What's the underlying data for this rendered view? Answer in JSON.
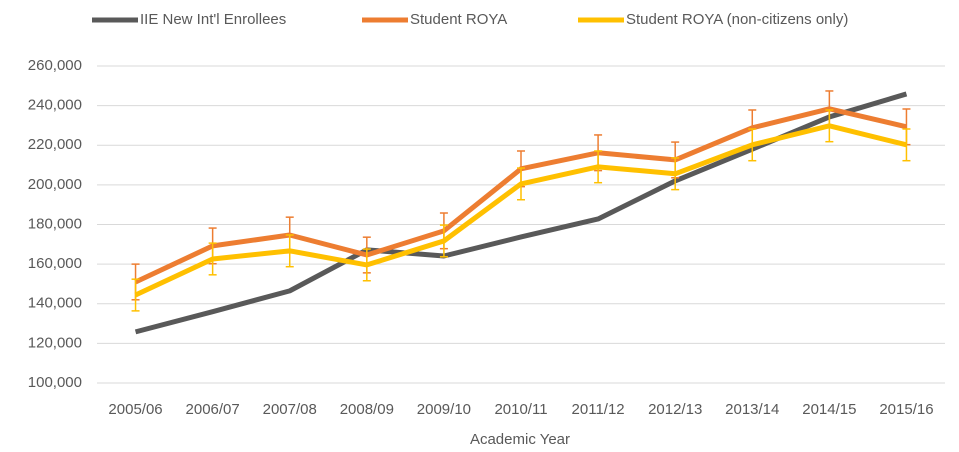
{
  "chart_data": {
    "type": "line",
    "x_label": "Academic Year",
    "categories": [
      "2005/06",
      "2006/07",
      "2007/08",
      "2008/09",
      "2009/10",
      "2010/11",
      "2011/12",
      "2012/13",
      "2013/14",
      "2014/15",
      "2015/16"
    ],
    "series": [
      {
        "name": "IIE New Int'l Enrollees",
        "color": "#595959",
        "values": [
          125800,
          136000,
          146500,
          167200,
          164100,
          173700,
          182800,
          202000,
          218000,
          234300,
          245900
        ]
      },
      {
        "name": "Student ROYA",
        "color": "#ed7d31",
        "values": [
          151000,
          169200,
          174700,
          164600,
          176800,
          208100,
          216200,
          212600,
          228800,
          238400,
          229300
        ],
        "errors": [
          9000,
          9000,
          9000,
          9000,
          9000,
          9000,
          9000,
          9000,
          9000,
          9000,
          9000
        ]
      },
      {
        "name": "Student ROYA (non-citizens only)",
        "color": "#ffc000",
        "values": [
          144400,
          162600,
          166700,
          159600,
          171700,
          200500,
          209100,
          205600,
          220200,
          229800,
          220200
        ],
        "errors": [
          8000,
          8000,
          8000,
          8000,
          8000,
          8000,
          8000,
          8000,
          8000,
          8000,
          8000
        ]
      }
    ],
    "ylim": [
      100000,
      260000
    ],
    "yticks": [
      {
        "value": 100000,
        "label": "100,000"
      },
      {
        "value": 120000,
        "label": "120,000"
      },
      {
        "value": 140000,
        "label": "140,000"
      },
      {
        "value": 160000,
        "label": "160,000"
      },
      {
        "value": 180000,
        "label": "180,000"
      },
      {
        "value": 200000,
        "label": "200,000"
      },
      {
        "value": 220000,
        "label": "220,000"
      },
      {
        "value": 240000,
        "label": "240,000"
      },
      {
        "value": 260000,
        "label": "260,000"
      }
    ],
    "grid": true,
    "legend": "top"
  }
}
